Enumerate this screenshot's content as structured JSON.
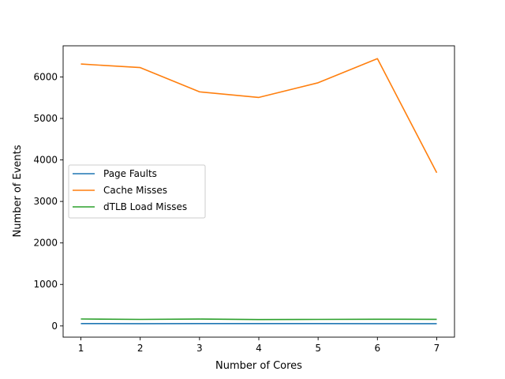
{
  "chart_data": {
    "type": "line",
    "xlabel": "Number of Cores",
    "ylabel": "Number of Events",
    "x": [
      1,
      2,
      3,
      4,
      5,
      6,
      7
    ],
    "xlim": [
      0.7,
      7.3
    ],
    "ylim": [
      -270,
      6750
    ],
    "xticks": [
      1,
      2,
      3,
      4,
      5,
      6,
      7
    ],
    "yticks": [
      0,
      1000,
      2000,
      3000,
      4000,
      5000,
      6000
    ],
    "grid": false,
    "legend_position": "center-left",
    "series": [
      {
        "name": "Page Faults",
        "color": "#1f77b4",
        "values": [
          58,
          55,
          58,
          58,
          57,
          55,
          55
        ]
      },
      {
        "name": "Cache Misses",
        "color": "#ff7f0e",
        "values": [
          6310,
          6225,
          5640,
          5505,
          5860,
          6440,
          3690
        ]
      },
      {
        "name": "dTLB Load Misses",
        "color": "#2ca02c",
        "values": [
          168,
          158,
          165,
          155,
          158,
          162,
          160
        ]
      }
    ]
  }
}
